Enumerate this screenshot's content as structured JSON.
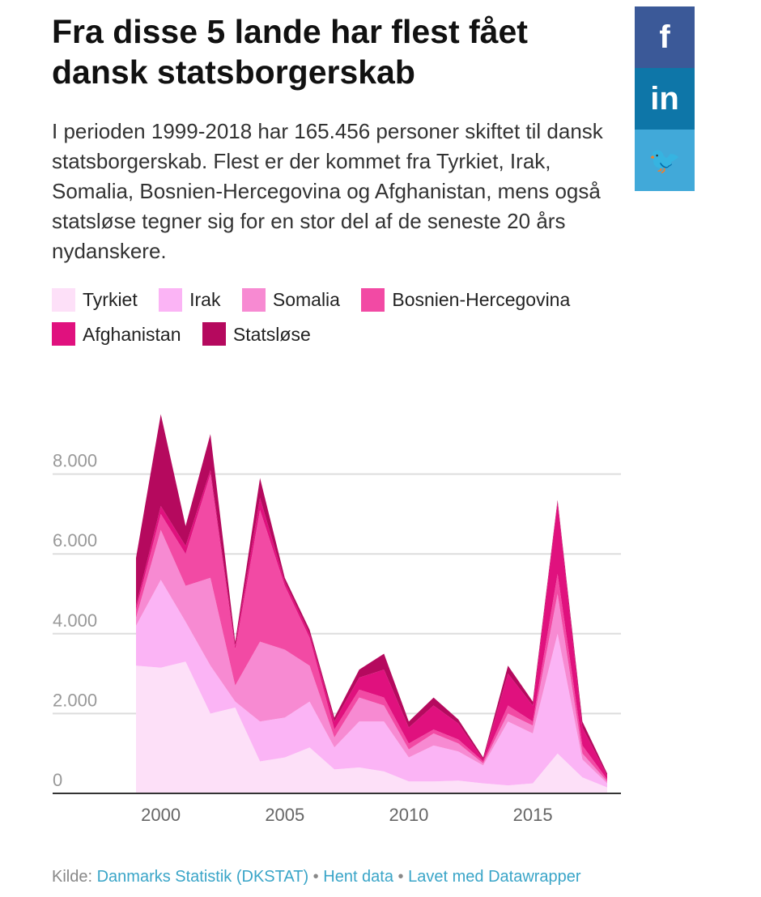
{
  "title": "Fra disse 5 lande har flest fået dansk statsborgerskab",
  "description": "I perioden 1999-2018 har 165.456 personer skiftet til dansk statsborgerskab. Flest er der kommet fra Tyrkiet, Irak, Somalia, Bosnien-Hercegovina og Afghanistan, mens også statsløse tegner sig for en stor del af de seneste 20 års nydanskere.",
  "social": [
    {
      "icon": "facebook-icon",
      "glyph": "f",
      "color": "#3b5998"
    },
    {
      "icon": "linkedin-icon",
      "glyph": "in",
      "color": "#0e76a8"
    },
    {
      "icon": "twitter-icon",
      "glyph": "🐦",
      "color": "#41a9d9"
    }
  ],
  "footer": {
    "source_label": "Kilde:",
    "source_link": "Danmarks Statistik (DKSTAT)",
    "separator": "•",
    "get_data": "Hent data",
    "made_with": "Lavet med Datawrapper"
  },
  "chart_data": {
    "type": "area",
    "stacked": true,
    "x": [
      1999,
      2000,
      2001,
      2002,
      2003,
      2004,
      2005,
      2006,
      2007,
      2008,
      2009,
      2010,
      2011,
      2012,
      2013,
      2014,
      2015,
      2016,
      2017,
      2018
    ],
    "x_ticks": [
      "2000",
      "2005",
      "2010",
      "2015"
    ],
    "y_ticks": [
      "0",
      "2.000",
      "4.000",
      "6.000",
      "8.000"
    ],
    "y_tick_values": [
      0,
      2000,
      4000,
      6000,
      8000
    ],
    "ylim": [
      0,
      9600
    ],
    "grid": true,
    "legend_position": "top",
    "series": [
      {
        "name": "Tyrkiet",
        "color": "#fde0f8",
        "values": [
          3200,
          3150,
          3300,
          2000,
          2150,
          800,
          900,
          1150,
          600,
          650,
          550,
          300,
          300,
          320,
          250,
          200,
          250,
          1000,
          400,
          150
        ]
      },
      {
        "name": "Irak",
        "color": "#fbb4f5",
        "values": [
          1000,
          2200,
          1000,
          1200,
          150,
          1000,
          1000,
          1150,
          550,
          1150,
          1250,
          600,
          900,
          730,
          450,
          1600,
          1250,
          3000,
          450,
          100
        ]
      },
      {
        "name": "Somalia",
        "color": "#f78ad2",
        "values": [
          200,
          1250,
          900,
          2200,
          400,
          2000,
          1700,
          900,
          250,
          600,
          400,
          200,
          300,
          200,
          50,
          200,
          200,
          1000,
          150,
          50
        ]
      },
      {
        "name": "Bosnien-Hercegovina",
        "color": "#f24aa4",
        "values": [
          200,
          400,
          800,
          2600,
          900,
          3300,
          1600,
          700,
          200,
          200,
          200,
          150,
          100,
          100,
          50,
          200,
          100,
          500,
          200,
          50
        ]
      },
      {
        "name": "Afghanistan",
        "color": "#e0117e",
        "values": [
          100,
          200,
          200,
          100,
          100,
          300,
          100,
          100,
          200,
          300,
          700,
          400,
          600,
          400,
          50,
          800,
          400,
          1800,
          450,
          100
        ]
      },
      {
        "name": "Statsløse",
        "color": "#b5095e",
        "values": [
          1200,
          2300,
          500,
          900,
          100,
          500,
          100,
          100,
          100,
          200,
          400,
          150,
          200,
          100,
          50,
          200,
          100,
          50,
          150,
          50
        ]
      }
    ]
  }
}
